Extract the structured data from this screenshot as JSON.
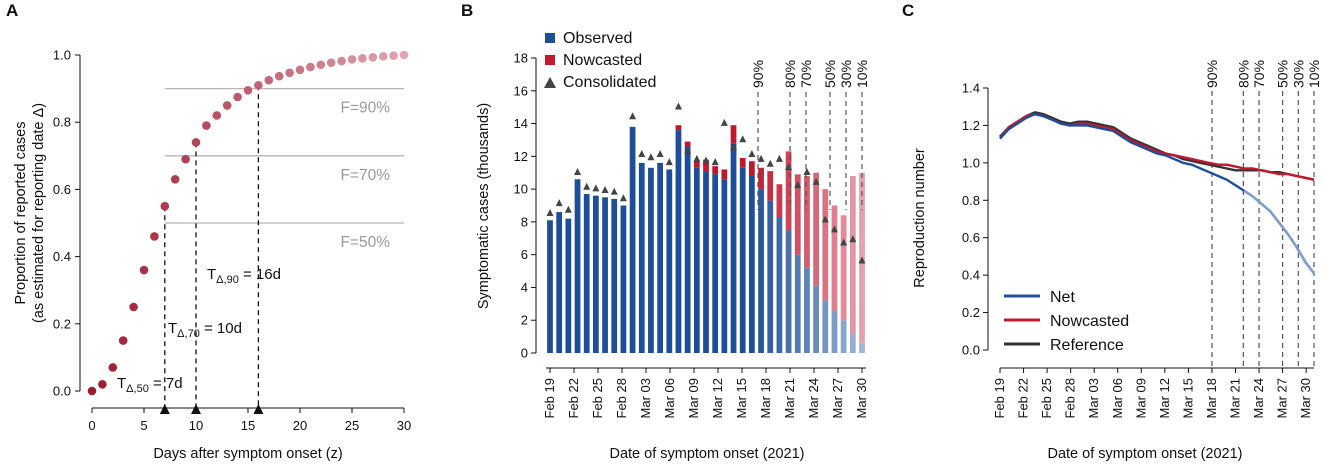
{
  "colors": {
    "observed": "#1f4e99",
    "nowcasted": "#c0182e",
    "consolidated": "#444444",
    "net": "#1f4e99",
    "reference": "#333333",
    "dot_start": "#9b1a2f",
    "dot_end": "#e0a6b3",
    "grid_gray": "#b5b5b5"
  },
  "panels": {
    "a": {
      "letter": "A"
    },
    "b": {
      "letter": "B"
    },
    "c": {
      "letter": "C"
    }
  },
  "chart_data": [
    {
      "panel": "A",
      "type": "scatter",
      "xlabel": "Days after symptom onset (z)",
      "ylabel": "Proportion of reported cases",
      "ylabel2": "(as estimated for reporting date Δ)",
      "xlim": [
        0,
        30
      ],
      "ylim": [
        0,
        1
      ],
      "xticks": [
        0,
        5,
        10,
        15,
        20,
        25,
        30
      ],
      "yticks": [
        "0.0",
        "0.2",
        "0.4",
        "0.6",
        "0.8",
        "1.0"
      ],
      "x": [
        0,
        1,
        2,
        3,
        4,
        5,
        6,
        7,
        8,
        9,
        10,
        11,
        12,
        13,
        14,
        15,
        16,
        17,
        18,
        19,
        20,
        21,
        22,
        23,
        24,
        25,
        26,
        27,
        28,
        29,
        30
      ],
      "y": [
        0.0,
        0.02,
        0.07,
        0.15,
        0.25,
        0.36,
        0.46,
        0.55,
        0.63,
        0.69,
        0.74,
        0.79,
        0.82,
        0.85,
        0.875,
        0.895,
        0.91,
        0.925,
        0.937,
        0.947,
        0.956,
        0.964,
        0.971,
        0.977,
        0.982,
        0.987,
        0.99,
        0.993,
        0.996,
        0.998,
        1.0
      ],
      "thresholds": [
        {
          "y": 0.9,
          "label": "F=90%"
        },
        {
          "y": 0.7,
          "label": "F=70%"
        },
        {
          "y": 0.5,
          "label": "F=50%"
        }
      ],
      "markers": [
        {
          "x": 7,
          "y": 0.55,
          "label_main": "T",
          "label_sub": "Δ,50",
          "label_rest": " = 7d"
        },
        {
          "x": 10,
          "y": 0.74,
          "label_main": "T",
          "label_sub": "Δ,70",
          "label_rest": " = 10d"
        },
        {
          "x": 16,
          "y": 0.91,
          "label_main": "T",
          "label_sub": "Δ,90",
          "label_rest": " = 16d"
        }
      ]
    },
    {
      "panel": "B",
      "type": "bar",
      "xlabel": "Date of symptom onset (2021)",
      "ylabel": "Symptomatic cases (thousands)",
      "ylim": [
        0,
        18
      ],
      "yticks": [
        "0",
        "2",
        "4",
        "6",
        "8",
        "10",
        "12",
        "14",
        "16",
        "18"
      ],
      "tick_labels": [
        "Feb 19",
        "Feb 22",
        "Feb 25",
        "Feb 28",
        "Mar 03",
        "Mar 06",
        "Mar 09",
        "Mar 12",
        "Mar 15",
        "Mar 18",
        "Mar 21",
        "Mar 24",
        "Mar 27",
        "Mar 30"
      ],
      "legend": [
        "Observed",
        "Nowcasted",
        "Consolidated"
      ],
      "observed": [
        8.1,
        8.6,
        8.2,
        10.6,
        9.7,
        9.6,
        9.5,
        9.4,
        9.0,
        13.8,
        11.6,
        11.3,
        11.6,
        11.2,
        13.6,
        12.6,
        11.3,
        11.1,
        10.9,
        10.6,
        12.8,
        11.3,
        10.8,
        10.0,
        9.3,
        8.3,
        7.5,
        6.0,
        5.2,
        4.1,
        3.2,
        2.6,
        2.0,
        1.2,
        0.6
      ],
      "nowcasted": [
        0,
        0,
        0,
        0,
        0,
        0,
        0,
        0,
        0,
        0,
        0,
        0,
        0,
        0,
        0.3,
        0.3,
        0.4,
        0.7,
        0.5,
        0.6,
        1.1,
        0.6,
        0.9,
        1.3,
        1.8,
        2.0,
        4.8,
        4.9,
        5.6,
        6.9,
        6.8,
        6.4,
        6.4,
        9.6,
        10.4
      ],
      "consolidated": [
        8.3,
        8.9,
        8.5,
        10.8,
        9.9,
        9.8,
        9.7,
        9.6,
        9.2,
        14.2,
        11.9,
        11.7,
        11.9,
        11.4,
        14.8,
        12.1,
        11.6,
        11.5,
        11.4,
        13.8,
        12.3,
        12.8,
        11.9,
        11.6,
        11.3,
        11.6,
        11.1,
        10.0,
        10.8,
        10.2,
        7.9,
        7.3,
        6.5,
        6.7,
        5.4
      ],
      "vlines": [
        {
          "index": 26,
          "label": "90%"
        },
        {
          "index": 30,
          "label": "80%"
        },
        {
          "index": 32,
          "label": "70%"
        },
        {
          "index": 35,
          "label": "50%"
        },
        {
          "index": 37,
          "label": "30%"
        },
        {
          "index": 39,
          "label": "10%"
        }
      ]
    },
    {
      "panel": "C",
      "type": "line",
      "xlabel": "Date of symptom onset (2021)",
      "ylabel": "Reproduction number",
      "ylim": [
        0,
        1.4
      ],
      "yticks": [
        "0.0",
        "0.2",
        "0.4",
        "0.6",
        "0.8",
        "1.0",
        "1.2",
        "1.4"
      ],
      "tick_labels": [
        "Feb 19",
        "Feb 22",
        "Feb 25",
        "Feb 28",
        "Mar 03",
        "Mar 06",
        "Mar 09",
        "Mar 12",
        "Mar 15",
        "Mar 18",
        "Mar 21",
        "Mar 24",
        "Mar 27",
        "Mar 30"
      ],
      "legend": [
        "Net",
        "Nowcasted",
        "Reference"
      ],
      "series": [
        {
          "name": "Reference",
          "values": [
            1.14,
            1.19,
            1.22,
            1.25,
            1.27,
            1.26,
            1.24,
            1.22,
            1.21,
            1.22,
            1.22,
            1.21,
            1.2,
            1.19,
            1.16,
            1.13,
            1.11,
            1.09,
            1.07,
            1.05,
            1.04,
            1.02,
            1.01,
            1.0,
            0.99,
            0.98,
            0.97,
            0.96,
            0.96,
            0.96,
            0.96,
            0.95,
            0.95,
            0.94,
            0.93,
            0.92,
            0.91
          ]
        },
        {
          "name": "Nowcasted",
          "values": [
            1.13,
            1.19,
            1.22,
            1.25,
            1.26,
            1.25,
            1.23,
            1.21,
            1.2,
            1.21,
            1.21,
            1.2,
            1.19,
            1.18,
            1.15,
            1.12,
            1.1,
            1.08,
            1.06,
            1.05,
            1.04,
            1.03,
            1.02,
            1.01,
            1.0,
            0.99,
            0.99,
            0.98,
            0.97,
            0.97,
            0.96,
            0.95,
            0.94,
            0.94,
            0.93,
            0.92,
            0.91
          ]
        },
        {
          "name": "Net",
          "values": [
            1.13,
            1.18,
            1.21,
            1.24,
            1.26,
            1.25,
            1.23,
            1.21,
            1.2,
            1.2,
            1.2,
            1.19,
            1.18,
            1.17,
            1.14,
            1.11,
            1.09,
            1.07,
            1.05,
            1.04,
            1.02,
            1.0,
            0.99,
            0.97,
            0.95,
            0.93,
            0.91,
            0.88,
            0.85,
            0.82,
            0.78,
            0.74,
            0.68,
            0.62,
            0.55,
            0.47,
            0.41
          ]
        }
      ],
      "vlines": [
        {
          "index": 27,
          "label": "90%"
        },
        {
          "index": 31,
          "label": "80%"
        },
        {
          "index": 33,
          "label": "70%"
        },
        {
          "index": 36,
          "label": "50%"
        },
        {
          "index": 38,
          "label": "30%"
        },
        {
          "index": 40,
          "label": "10%"
        }
      ]
    }
  ]
}
